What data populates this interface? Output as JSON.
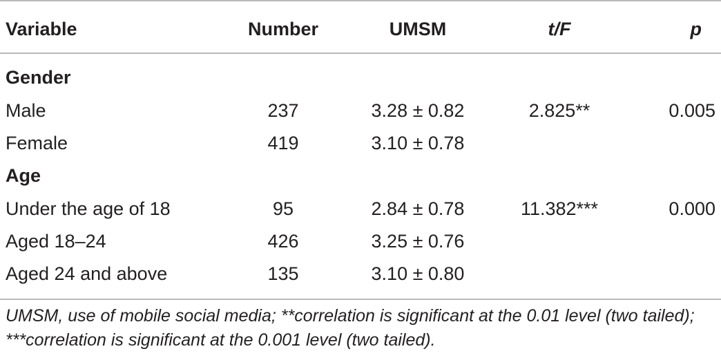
{
  "table": {
    "headers": {
      "variable": "Variable",
      "number": "Number",
      "umsm": "UMSM",
      "tf": "t/F",
      "p": "p"
    },
    "groups": [
      {
        "title": "Gender",
        "rows": [
          {
            "variable": "Male",
            "number": "237",
            "umsm": "3.28 ± 0.82",
            "tf": "2.825**",
            "p": "0.005"
          },
          {
            "variable": "Female",
            "number": "419",
            "umsm": "3.10 ± 0.78",
            "tf": "",
            "p": ""
          }
        ]
      },
      {
        "title": "Age",
        "rows": [
          {
            "variable": "Under the age of 18",
            "number": "95",
            "umsm": "2.84 ± 0.78",
            "tf": "11.382***",
            "p": "0.000"
          },
          {
            "variable": "Aged 18–24",
            "number": "426",
            "umsm": "3.25 ± 0.76",
            "tf": "",
            "p": ""
          },
          {
            "variable": "Aged 24 and above",
            "number": "135",
            "umsm": "3.10 ± 0.80",
            "tf": "",
            "p": ""
          }
        ]
      }
    ],
    "footnote": "UMSM, use of mobile social media; **correlation is significant at the 0.01 level (two tailed); ***correlation is significant at the 0.001 level (two tailed)."
  }
}
